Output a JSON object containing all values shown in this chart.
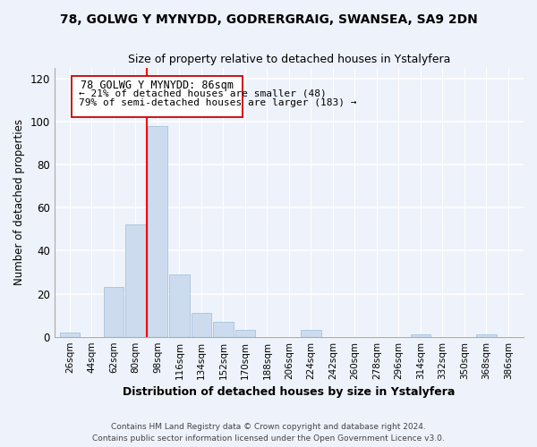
{
  "title": "78, GOLWG Y MYNYDD, GODRERGRAIG, SWANSEA, SA9 2DN",
  "subtitle": "Size of property relative to detached houses in Ystalyfera",
  "xlabel": "Distribution of detached houses by size in Ystalyfera",
  "ylabel": "Number of detached properties",
  "bar_color": "#ccdcee",
  "bar_edge_color": "#aec8e0",
  "categories": [
    "26sqm",
    "44sqm",
    "62sqm",
    "80sqm",
    "98sqm",
    "116sqm",
    "134sqm",
    "152sqm",
    "170sqm",
    "188sqm",
    "206sqm",
    "224sqm",
    "242sqm",
    "260sqm",
    "278sqm",
    "296sqm",
    "314sqm",
    "332sqm",
    "350sqm",
    "368sqm",
    "386sqm"
  ],
  "values": [
    2,
    0,
    23,
    52,
    98,
    29,
    11,
    7,
    3,
    0,
    0,
    3,
    0,
    0,
    0,
    0,
    1,
    0,
    0,
    1,
    0
  ],
  "ylim": [
    0,
    125
  ],
  "yticks": [
    0,
    20,
    40,
    60,
    80,
    100,
    120
  ],
  "property_line_label": "78 GOLWG Y MYNYDD: 86sqm",
  "annotation_line1": "← 21% of detached houses are smaller (48)",
  "annotation_line2": "79% of semi-detached houses are larger (183) →",
  "box_color": "#ffffff",
  "box_border_color": "#cc0000",
  "footer_line1": "Contains HM Land Registry data © Crown copyright and database right 2024.",
  "footer_line2": "Contains public sector information licensed under the Open Government Licence v3.0.",
  "background_color": "#eef2fa"
}
